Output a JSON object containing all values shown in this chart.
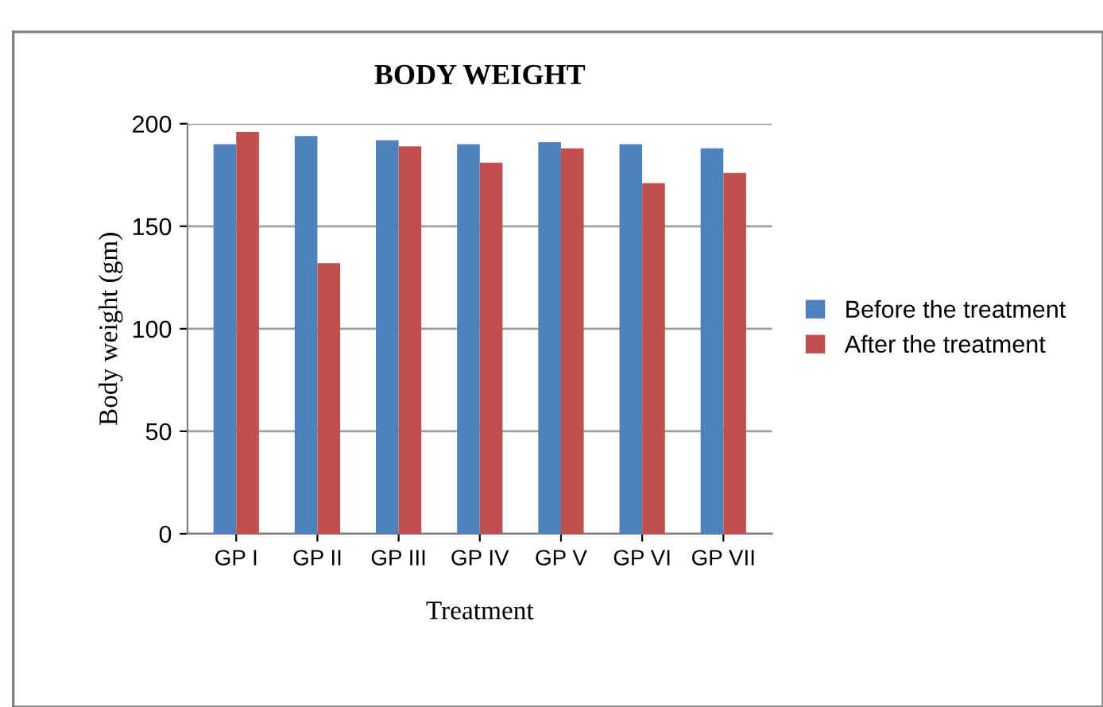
{
  "chart_data": {
    "type": "bar",
    "title": "BODY WEIGHT",
    "xlabel": "Treatment",
    "ylabel": "Body weight (gm)",
    "categories": [
      "GP I",
      "GP II",
      "GP III",
      "GP IV",
      "GP V",
      "GP VI",
      "GP VII"
    ],
    "series": [
      {
        "name": "Before the treatment",
        "color": "#4f81bd",
        "values": [
          190,
          194,
          192,
          190,
          191,
          190,
          188
        ]
      },
      {
        "name": "After the treatment",
        "color": "#c0504d",
        "values": [
          196,
          132,
          189,
          181,
          188,
          171,
          176
        ]
      }
    ],
    "ylim": [
      0,
      200
    ],
    "yticks": [
      0,
      50,
      100,
      150,
      200
    ],
    "grid": "y",
    "legend": "right"
  }
}
